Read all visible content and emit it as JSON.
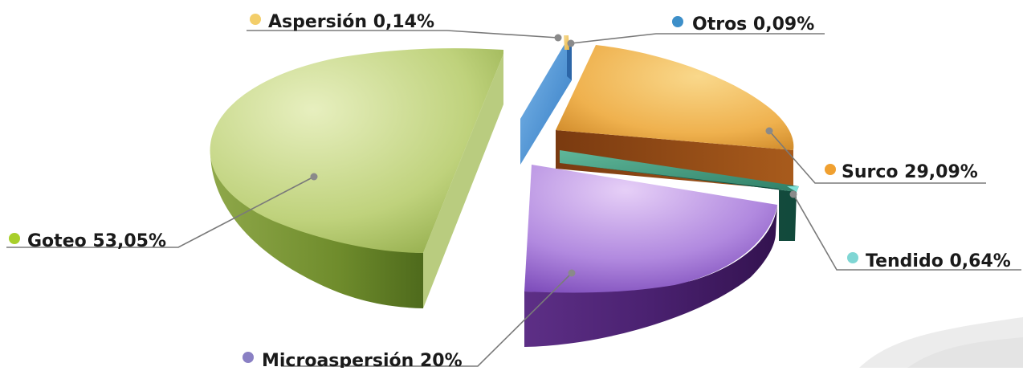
{
  "chart_data": {
    "type": "pie",
    "title": "",
    "style": "3d-exploded",
    "legend": "none",
    "slices": [
      {
        "key": "goteo",
        "label": "Goteo",
        "value": 53.05,
        "value_label": "53,05%",
        "color": "#b3c86a",
        "dot": "#a8cf2a"
      },
      {
        "key": "surco",
        "label": "Surco",
        "value": 29.09,
        "value_label": "29,09%",
        "color": "#f0b24a",
        "dot": "#f0a030"
      },
      {
        "key": "microaspersion",
        "label": "Microaspersión",
        "value": 20,
        "value_label": "20%",
        "color": "#a77fd6",
        "dot": "#8a80c4"
      },
      {
        "key": "tendido",
        "label": "Tendido",
        "value": 0.64,
        "value_label": "0,64%",
        "color": "#3f9a7e",
        "dot": "#7fd6d4"
      },
      {
        "key": "aspersion",
        "label": "Aspersión",
        "value": 0.14,
        "value_label": "0,14%",
        "color": "#f4c96a",
        "dot": "#f3ce6a"
      },
      {
        "key": "otros",
        "label": "Otros",
        "value": 0.09,
        "value_label": "0,09%",
        "color": "#4b95d6",
        "dot": "#3d8fc9"
      }
    ]
  }
}
